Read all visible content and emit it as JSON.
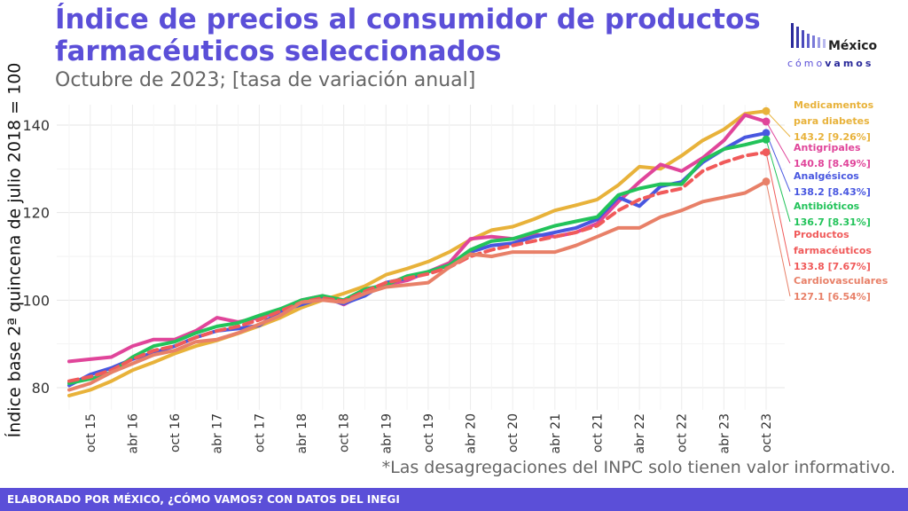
{
  "title": "Índice de precios al consumidor de productos farmacéuticos seleccionados",
  "subtitle": "Octubre de 2023; [tasa de variación anual]",
  "logo": {
    "word1": "México",
    "word2a": "cómo",
    "word2b": "vamos"
  },
  "note": "*Las desagregaciones del INPC solo tienen valor informativo.",
  "footer": "ELABORADO POR MÉXICO, ¿CÓMO VAMOS? CON DATOS DEL INEGI",
  "chart_data": {
    "type": "line",
    "title": "Índice de precios al consumidor de productos farmacéuticos seleccionados",
    "subtitle": "Octubre de 2023; [tasa de variación anual]",
    "ylabel": "Índice base 2ª quincena de julio 2018 = 100",
    "xlabel": "",
    "ylim": [
      75,
      148
    ],
    "yticks": [
      80,
      100,
      120,
      140
    ],
    "grid": true,
    "legend": "direct-labels-right",
    "x": [
      "jul 15",
      "oct 15",
      "ene 16",
      "abr 16",
      "jul 16",
      "oct 16",
      "ene 17",
      "abr 17",
      "jul 17",
      "oct 17",
      "ene 18",
      "abr 18",
      "jul 18",
      "oct 18",
      "ene 19",
      "abr 19",
      "jul 19",
      "oct 19",
      "ene 20",
      "abr 20",
      "jul 20",
      "oct 20",
      "ene 21",
      "abr 21",
      "jul 21",
      "oct 21",
      "ene 22",
      "abr 22",
      "jul 22",
      "oct 22",
      "ene 23",
      "abr 23",
      "jul 23",
      "oct 23"
    ],
    "xtick_labels": [
      "oct 15",
      "abr 16",
      "oct 16",
      "abr 17",
      "oct 17",
      "abr 18",
      "oct 18",
      "abr 19",
      "oct 19",
      "abr 20",
      "oct 20",
      "abr 21",
      "oct 21",
      "abr 22",
      "oct 22",
      "abr 23",
      "oct 23"
    ],
    "series": [
      {
        "name": "Medicamentos para diabetes",
        "label": "143.2 [9.26%]",
        "color": "#e8b23a",
        "dashed": false,
        "values": [
          78.2,
          79.5,
          81.5,
          84.0,
          85.8,
          87.8,
          89.5,
          90.8,
          92.4,
          94.1,
          96.0,
          98.3,
          100.0,
          101.5,
          103.2,
          105.8,
          107.2,
          108.8,
          111.0,
          113.8,
          116.0,
          116.8,
          118.5,
          120.5,
          121.7,
          123.0,
          126.3,
          130.5,
          130.0,
          133.0,
          136.5,
          139.0,
          142.6,
          143.2
        ]
      },
      {
        "name": "Antigripales",
        "label": "140.8 [8.49%]",
        "color": "#e0459a",
        "dashed": false,
        "values": [
          86.0,
          86.5,
          87.0,
          89.5,
          91.0,
          91.0,
          93.0,
          96.0,
          95.0,
          96.0,
          97.5,
          100.0,
          101.0,
          99.0,
          101.5,
          103.5,
          104.5,
          106.5,
          108.5,
          114.0,
          114.5,
          114.0,
          115.0,
          114.5,
          115.5,
          117.5,
          122.5,
          127.0,
          131.0,
          129.5,
          132.5,
          136.5,
          142.3,
          140.8
        ]
      },
      {
        "name": "Analgésicos",
        "label": "138.2 [8.43%]",
        "color": "#4857e0",
        "dashed": false,
        "values": [
          80.5,
          83.0,
          84.5,
          86.5,
          88.0,
          89.5,
          91.5,
          93.0,
          93.5,
          94.2,
          97.5,
          99.0,
          100.5,
          99.2,
          101.0,
          104.0,
          105.0,
          106.5,
          108.0,
          111.0,
          112.5,
          113.0,
          114.5,
          115.5,
          116.5,
          118.5,
          123.5,
          121.5,
          126.0,
          127.0,
          131.5,
          134.5,
          137.2,
          138.2
        ]
      },
      {
        "name": "Antibióticos",
        "label": "136.7 [8.31%]",
        "color": "#22c35a",
        "dashed": false,
        "values": [
          81.0,
          82.0,
          83.5,
          87.0,
          89.5,
          90.5,
          92.5,
          94.0,
          94.8,
          96.5,
          98.0,
          100.0,
          101.0,
          100.0,
          102.5,
          103.5,
          105.5,
          106.5,
          108.0,
          111.5,
          113.5,
          114.0,
          115.5,
          117.0,
          118.0,
          119.0,
          124.0,
          125.5,
          126.5,
          126.5,
          132.0,
          134.5,
          135.5,
          136.7
        ]
      },
      {
        "name": "Productos farmacéuticos",
        "label": "133.8 [7.67%]",
        "color": "#f05a5a",
        "dashed": true,
        "values": [
          81.5,
          82.5,
          84.0,
          86.5,
          88.5,
          89.5,
          91.5,
          93.0,
          94.0,
          95.5,
          97.5,
          99.5,
          100.5,
          99.8,
          102.0,
          104.0,
          105.0,
          106.0,
          107.5,
          110.0,
          111.5,
          112.5,
          113.5,
          114.5,
          115.5,
          117.0,
          120.5,
          123.0,
          124.5,
          125.5,
          129.5,
          131.5,
          133.0,
          133.8
        ]
      },
      {
        "name": "Cardiovasculares",
        "label": "127.1 [6.54%]",
        "color": "#e88068",
        "dashed": false,
        "values": [
          79.5,
          81.0,
          83.5,
          85.5,
          87.5,
          88.5,
          90.5,
          91.0,
          92.5,
          94.5,
          96.5,
          99.5,
          100.0,
          99.5,
          101.5,
          103.0,
          103.5,
          104.0,
          107.5,
          110.5,
          110.0,
          111.0,
          111.0,
          111.0,
          112.5,
          114.5,
          116.5,
          116.5,
          119.0,
          120.5,
          122.5,
          123.5,
          124.5,
          127.1
        ]
      }
    ]
  }
}
